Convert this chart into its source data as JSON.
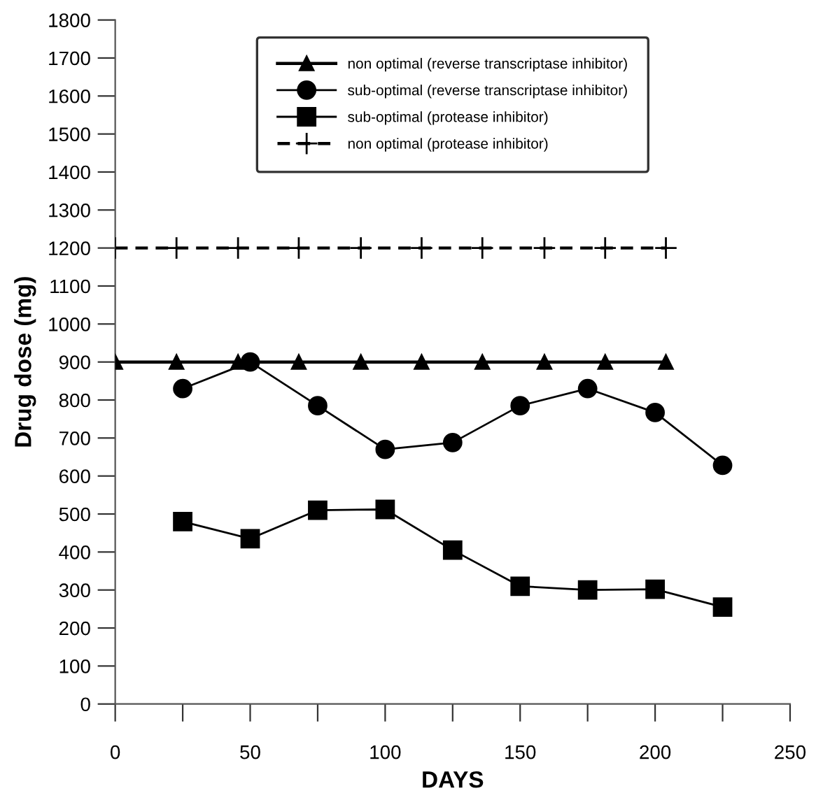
{
  "chart_data": {
    "type": "line",
    "xlabel": "DAYS",
    "ylabel": "Drug dose (mg)",
    "xlim": [
      0,
      250
    ],
    "ylim": [
      0,
      1800
    ],
    "xticks": [
      0,
      {
        "value": 25,
        "label": null
      },
      50,
      {
        "value": 75,
        "label": null
      },
      100,
      {
        "value": 125,
        "label": null
      },
      150,
      {
        "value": 175,
        "label": null
      },
      200,
      {
        "value": 225,
        "label": null
      },
      250
    ],
    "yticks": [
      0,
      100,
      200,
      300,
      400,
      500,
      600,
      700,
      800,
      900,
      1000,
      1100,
      1200,
      1300,
      1400,
      1500,
      1600,
      1700,
      1800
    ],
    "grid": false,
    "legend": "top",
    "series": [
      {
        "name": "non optimal (reverse transcriptase inhibitor)",
        "color": "#000000",
        "marker": "triangle",
        "line_style": "solid",
        "x": [
          0,
          22.7,
          45.5,
          68,
          91,
          113.5,
          136,
          159,
          181.5,
          204
        ],
        "values": [
          900,
          900,
          900,
          900,
          900,
          900,
          900,
          900,
          900,
          900
        ]
      },
      {
        "name": "sub-optimal (reverse transcriptase inhibitor)",
        "color": "#000000",
        "marker": "circle",
        "line_style": "solid",
        "x": [
          25,
          50,
          75,
          100,
          125,
          150,
          175,
          200,
          225
        ],
        "values": [
          830,
          900,
          785,
          670,
          688,
          785,
          830,
          767,
          628
        ]
      },
      {
        "name": "sub-optimal (protease inhibitor)",
        "color": "#000000",
        "marker": "square",
        "line_style": "solid",
        "x": [
          25,
          50,
          75,
          100,
          125,
          150,
          175,
          200,
          225
        ],
        "values": [
          480,
          435,
          510,
          512,
          405,
          310,
          300,
          302,
          255
        ]
      },
      {
        "name": "non optimal (protease inhibitor)",
        "color": "#000000",
        "marker": "cross",
        "line_style": "dashed",
        "x": [
          0,
          22.7,
          45.5,
          68,
          91,
          113.5,
          136,
          159,
          181.5,
          204
        ],
        "values": [
          1200,
          1200,
          1200,
          1200,
          1200,
          1200,
          1200,
          1200,
          1200,
          1200
        ]
      }
    ]
  }
}
